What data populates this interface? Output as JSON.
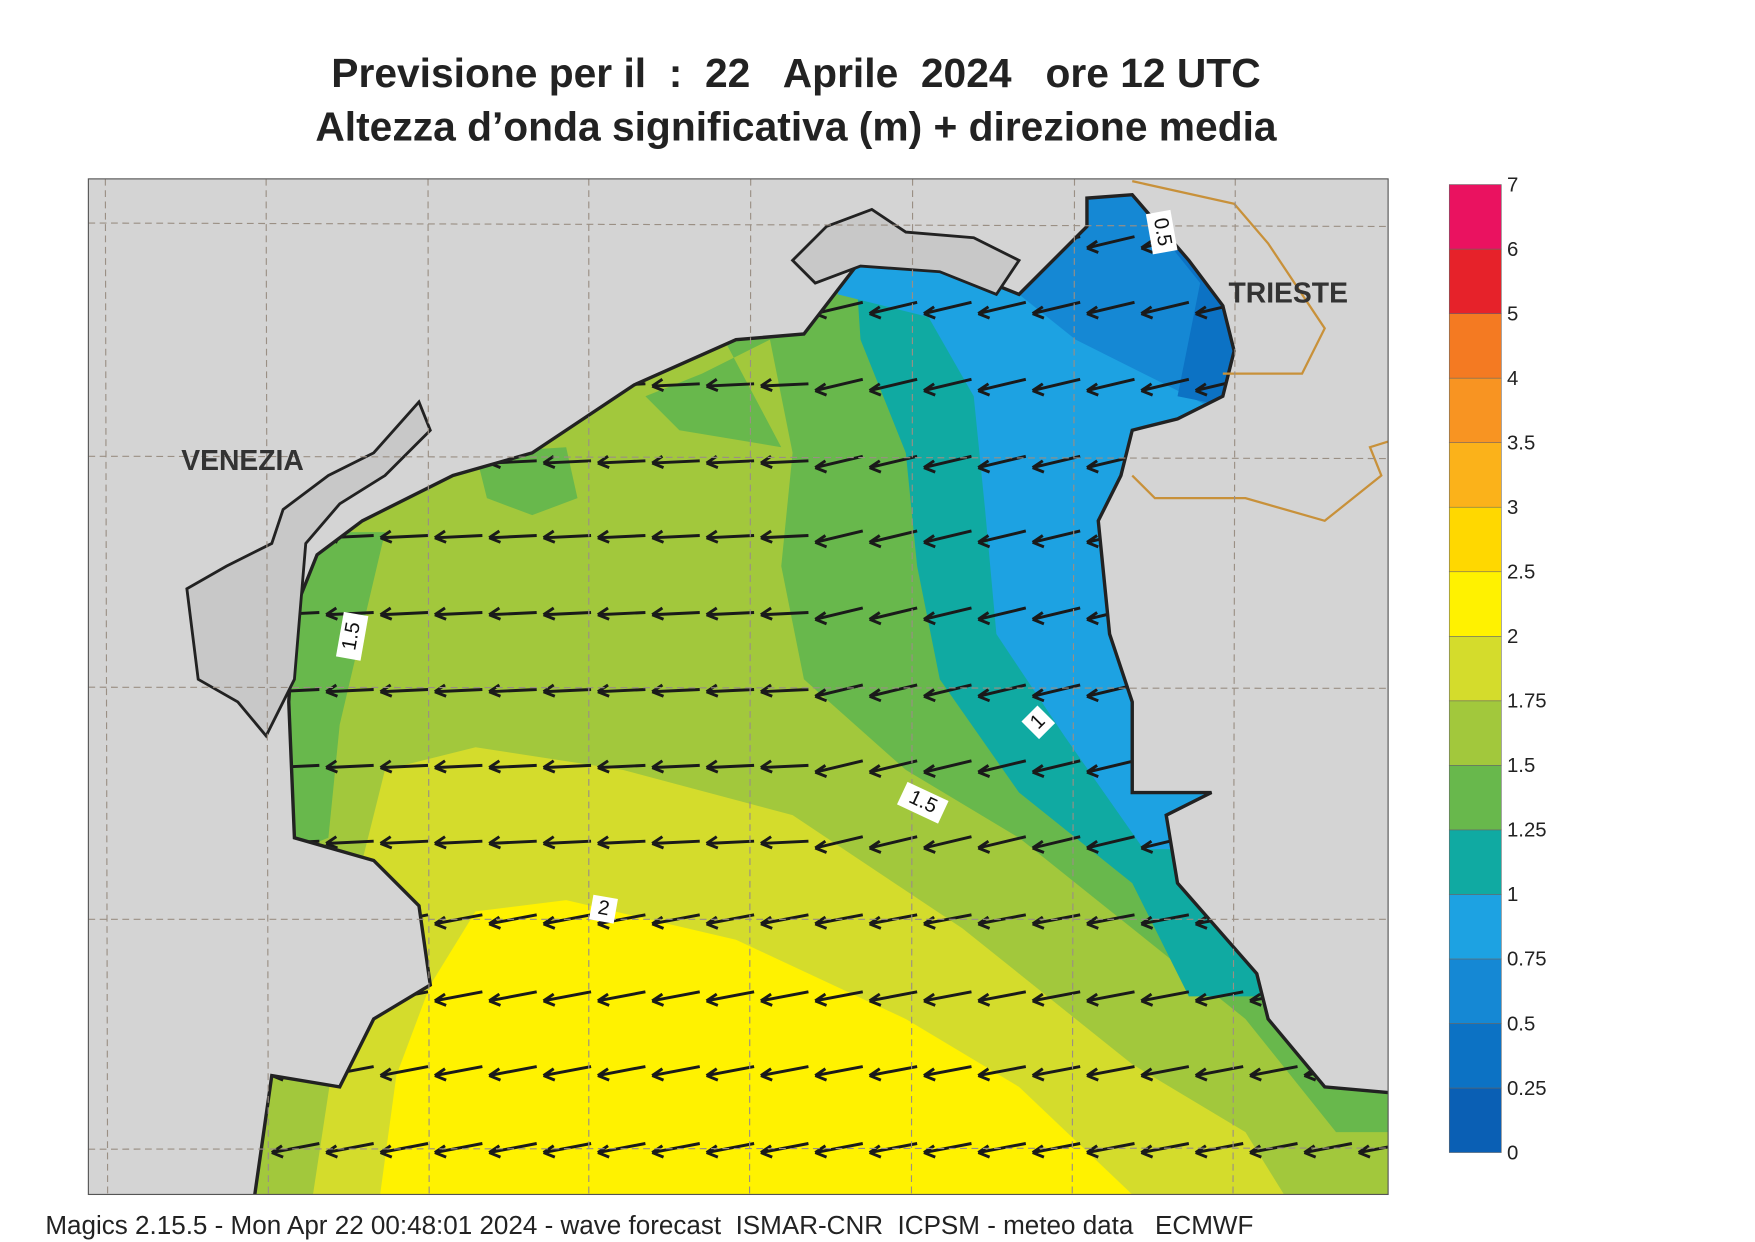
{
  "title": {
    "line1": "Previsione per il  :  22   Aprile  2024   ore 12 UTC",
    "line2": "Altezza d’onda significativa (m) + direzione media"
  },
  "map": {
    "place_labels": [
      "VENEZIA",
      "TRIESTE"
    ],
    "contour_labels": [
      "1.5",
      "1",
      "1.5",
      "2",
      "0.5"
    ]
  },
  "colorbar": {
    "levels": [
      0,
      0.25,
      0.5,
      0.75,
      1,
      1.25,
      1.5,
      1.75,
      2,
      2.5,
      3,
      3.5,
      4,
      5,
      6,
      7
    ],
    "colors": [
      "#0a5fb4",
      "#0c72c4",
      "#1588d4",
      "#1da2e2",
      "#10aaa2",
      "#68b84c",
      "#a2c83c",
      "#d4dc2c",
      "#fff200",
      "#ffd800",
      "#fbb21a",
      "#f89422",
      "#f47a22",
      "#e6222a",
      "#ea1260"
    ]
  },
  "footer": "Magics 2.15.5 - Mon Apr 22 00:48:01 2024 - wave forecast  ISMAR-CNR  ICPSM - meteo data   ECMWF"
}
